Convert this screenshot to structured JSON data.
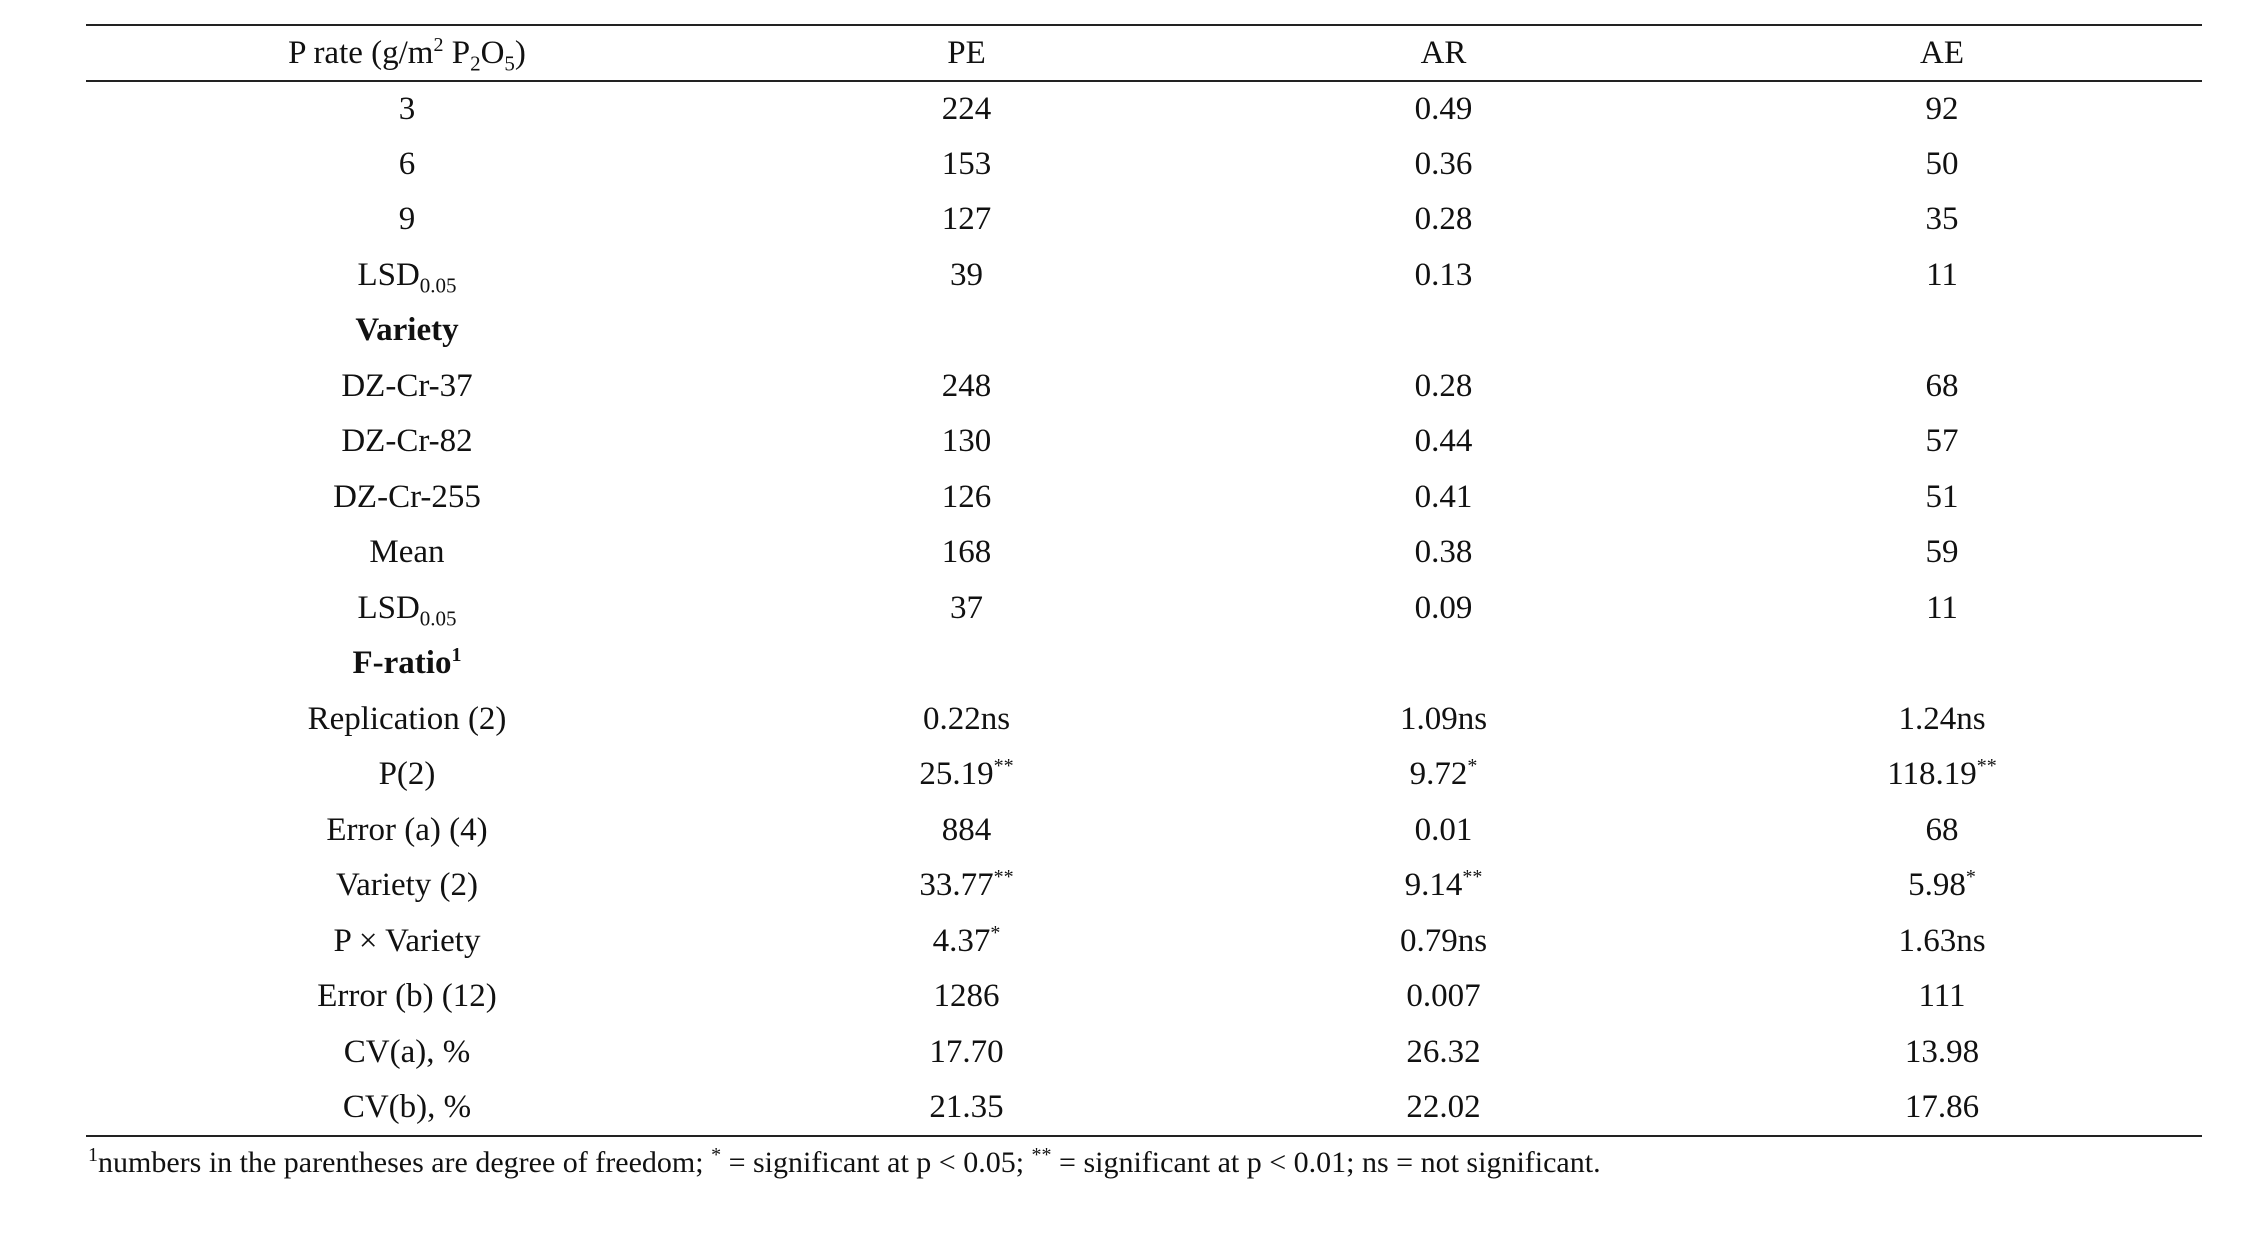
{
  "table": {
    "header": {
      "col0": {
        "prefix": "P rate (g/m",
        "sup": "2",
        "mid1": " P",
        "sub1": "2",
        "mid2": "O",
        "sub2": "5",
        "suffix": ")"
      },
      "col1": "PE",
      "col2": "AR",
      "col3": "AE"
    },
    "rows": [
      {
        "label": "3",
        "pe": "224",
        "ar": "0.49",
        "ae": "92"
      },
      {
        "label": "6",
        "pe": "153",
        "ar": "0.36",
        "ae": "50"
      },
      {
        "label": "9",
        "pe": "127",
        "ar": "0.28",
        "ae": "35"
      },
      {
        "label_main": "LSD",
        "label_sub": "0.05",
        "pe": "39",
        "ar": "0.13",
        "ae": "11"
      },
      {
        "section": "Variety"
      },
      {
        "label": "DZ-Cr-37",
        "pe": "248",
        "ar": "0.28",
        "ae": "68"
      },
      {
        "label": "DZ-Cr-82",
        "pe": "130",
        "ar": "0.44",
        "ae": "57"
      },
      {
        "label": "DZ-Cr-255",
        "pe": "126",
        "ar": "0.41",
        "ae": "51"
      },
      {
        "label": "Mean",
        "pe": "168",
        "ar": "0.38",
        "ae": "59"
      },
      {
        "label_main": "LSD",
        "label_sub": "0.05",
        "pe": "37",
        "ar": "0.09",
        "ae": "11"
      },
      {
        "section": "F-ratio",
        "section_sup": "1"
      },
      {
        "label": "Replication (2)",
        "pe": "0.22ns",
        "ar": "1.09ns",
        "ae": "1.24ns"
      },
      {
        "label": "P(2)",
        "pe": "25.19",
        "pe_sup": "**",
        "ar": "9.72",
        "ar_sup": "*",
        "ae": "118.19",
        "ae_sup": "**"
      },
      {
        "label": "Error (a) (4)",
        "pe": "884",
        "ar": "0.01",
        "ae": "68"
      },
      {
        "label": "Variety (2)",
        "pe": "33.77",
        "pe_sup": "**",
        "ar": "9.14",
        "ar_sup": "**",
        "ae": "5.98",
        "ae_sup": "*"
      },
      {
        "label": "P × Variety",
        "pe": "4.37",
        "pe_sup": "*",
        "ar": "0.79ns",
        "ae": "1.63ns"
      },
      {
        "label": "Error (b) (12)",
        "pe": "1286",
        "ar": "0.007",
        "ae": "111"
      },
      {
        "label": "CV(a), %",
        "pe": "17.70",
        "ar": "26.32",
        "ae": "13.98"
      },
      {
        "label": "CV(b), %",
        "pe": "21.35",
        "ar": "22.02",
        "ae": "17.86"
      }
    ]
  },
  "footnote": {
    "sup1": "1",
    "text1": "numbers in the parentheses are degree of freedom; ",
    "sup2": "*",
    "text2": " = significant at p < 0.05; ",
    "sup3": "**",
    "text3": " = significant at p < 0.01; ns = not significant."
  }
}
